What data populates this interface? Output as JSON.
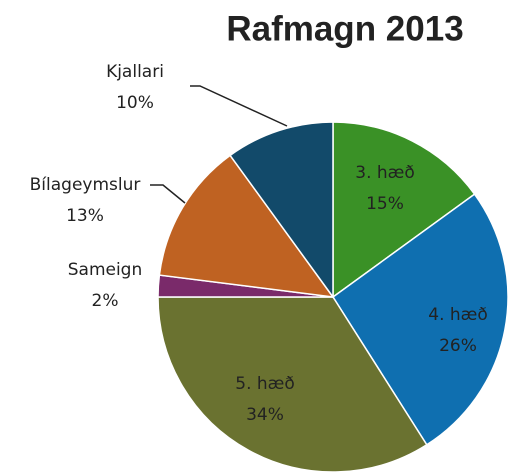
{
  "chart_data": {
    "type": "pie",
    "title": "Rafmagn 2013",
    "categories": [
      "3. hæð",
      "4. hæð",
      "5. hæð",
      "Sameign",
      "Bílageymslur",
      "Kjallari"
    ],
    "values": [
      15,
      26,
      34,
      2,
      13,
      10
    ],
    "value_labels": [
      "15%",
      "26%",
      "34%",
      "2%",
      "13%",
      "10%"
    ],
    "colors": [
      "#3a9126",
      "#0f6fb0",
      "#6a7230",
      "#7a2a6a",
      "#bf6222",
      "#124a6a"
    ]
  }
}
